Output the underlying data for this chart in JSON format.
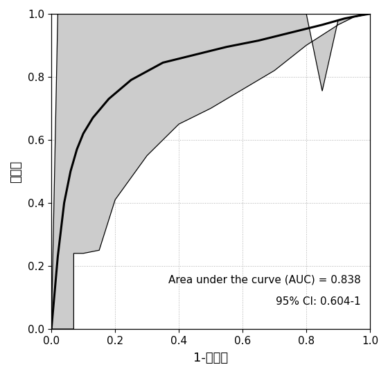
{
  "title": "",
  "xlabel": "1-特异性",
  "ylabel": "灵敏度",
  "auc_text": "Area under the curve (AUC) = 0.838",
  "ci_text": "95% CI: 0.604-1",
  "roc_x": [
    0.0,
    0.02,
    0.04,
    0.06,
    0.08,
    0.1,
    0.13,
    0.18,
    0.25,
    0.35,
    0.45,
    0.55,
    0.65,
    0.75,
    0.85,
    0.92,
    0.97,
    1.0
  ],
  "roc_y": [
    0.0,
    0.23,
    0.4,
    0.5,
    0.57,
    0.62,
    0.67,
    0.73,
    0.79,
    0.845,
    0.87,
    0.895,
    0.915,
    0.94,
    0.965,
    0.985,
    0.995,
    1.0
  ],
  "ci_upper_x": [
    0.0,
    0.01,
    0.02,
    0.1,
    0.2,
    0.3,
    0.4,
    0.5,
    0.6,
    0.7,
    0.8,
    0.85,
    0.9,
    0.95,
    1.0
  ],
  "ci_upper_y": [
    0.0,
    0.5,
    1.0,
    1.0,
    1.0,
    1.0,
    1.0,
    1.0,
    1.0,
    1.0,
    1.0,
    0.755,
    0.98,
    0.99,
    1.0
  ],
  "ci_lower_x": [
    0.0,
    0.02,
    0.06,
    0.07,
    0.07,
    0.1,
    0.15,
    0.2,
    0.3,
    0.4,
    0.5,
    0.6,
    0.7,
    0.8,
    0.9,
    0.95,
    1.0
  ],
  "ci_lower_y": [
    0.0,
    0.0,
    0.0,
    0.0,
    0.24,
    0.24,
    0.25,
    0.41,
    0.55,
    0.65,
    0.7,
    0.76,
    0.82,
    0.9,
    0.965,
    0.99,
    1.0
  ],
  "fill_color": "#cccccc",
  "line_color": "#000000",
  "background_color": "#ffffff",
  "grid_color": "#999999",
  "xlim": [
    0.0,
    1.0
  ],
  "ylim": [
    0.0,
    1.0
  ],
  "tick_values": [
    0.0,
    0.2,
    0.4,
    0.6,
    0.8,
    1.0
  ],
  "xlabel_fontsize": 13,
  "ylabel_fontsize": 13,
  "tick_fontsize": 11,
  "annotation_fontsize": 11,
  "line_width": 2.2
}
